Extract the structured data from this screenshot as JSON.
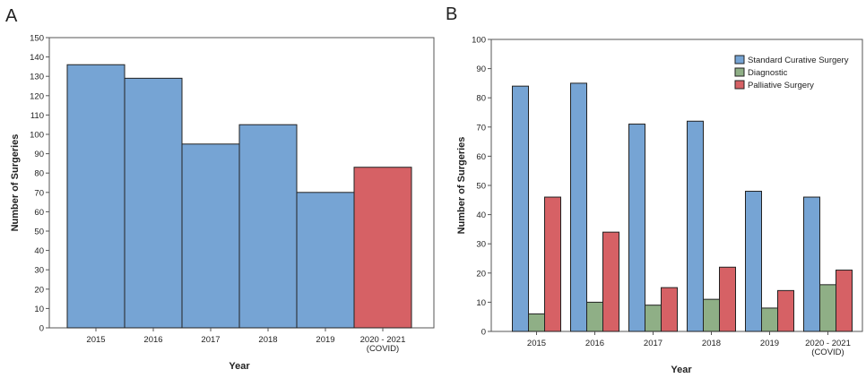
{
  "colors": {
    "blue": "#76A4D4",
    "green": "#8FAF86",
    "red": "#D66165",
    "stroke": "#222222"
  },
  "chart_data": [
    {
      "panel": "A",
      "type": "bar",
      "categories": [
        "2015",
        "2016",
        "2017",
        "2018",
        "2019",
        "2020 - 2021|(COVID)"
      ],
      "values": [
        136,
        129,
        95,
        105,
        70,
        83
      ],
      "bar_colors": [
        "blue",
        "blue",
        "blue",
        "blue",
        "blue",
        "red"
      ],
      "xlabel": "Year",
      "ylabel": "Number of Surgeries",
      "ylim": [
        0,
        150
      ],
      "ytick_step": 10,
      "grid": false,
      "legend": "none"
    },
    {
      "panel": "B",
      "type": "bar",
      "categories": [
        "2015",
        "2016",
        "2017",
        "2018",
        "2019",
        "2020 - 2021|(COVID)"
      ],
      "series": [
        {
          "name": "Standard Curative Surgery",
          "color": "blue",
          "values": [
            84,
            85,
            71,
            72,
            48,
            46
          ]
        },
        {
          "name": "Diagnostic",
          "color": "green",
          "values": [
            6,
            10,
            9,
            11,
            8,
            16
          ]
        },
        {
          "name": "Palliative Surgery",
          "color": "red",
          "values": [
            46,
            34,
            15,
            22,
            14,
            21
          ]
        }
      ],
      "xlabel": "Year",
      "ylabel": "Number of Surgeries",
      "ylim": [
        0,
        100
      ],
      "ytick_step": 10,
      "grid": false,
      "legend": "top-right"
    }
  ]
}
